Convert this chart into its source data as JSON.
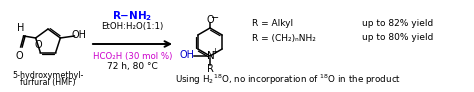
{
  "figsize": [
    4.74,
    0.92
  ],
  "dpi": 100,
  "bg": "#ffffff",
  "arrow_color": "k",
  "blue": "#0000ff",
  "magenta": "#cc00cc",
  "dark_blue": "#0000cc",
  "label_1": "5-hydroxymethyl-",
  "label_2": "furfural (HMF)",
  "above_arrow_1": "R–NH",
  "above_arrow_2": "EtOH:H₂O(1:1)",
  "below_arrow_1": "HCO₂H (30 mol %)",
  "below_arrow_2": "72 h, 80 °C",
  "r1": "R = Alkyl",
  "r1_yield": "up to 82% yield",
  "r2": "R = (CH₂)ₙNH₂",
  "r2_yield": "up to 80% yield",
  "bottom": "Using H₂",
  "bottom_super1": "18",
  "bottom_mid": "O, no incorporation of ",
  "bottom_super2": "18",
  "bottom_end": "O in the product"
}
